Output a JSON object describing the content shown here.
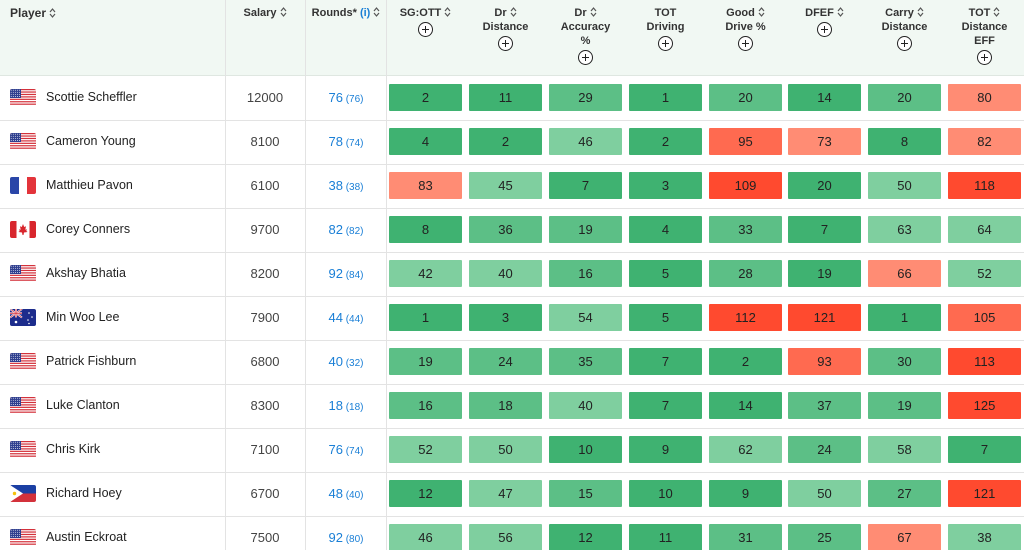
{
  "header": {
    "player": "Player",
    "salary": "Salary",
    "rounds": "Rounds*",
    "rounds_info": "(i)",
    "stats": [
      {
        "lines": [
          "SG:OTT"
        ],
        "sort": true
      },
      {
        "lines": [
          "Dr",
          "Distance"
        ],
        "sort": true
      },
      {
        "lines": [
          "Dr",
          "Accuracy",
          "%"
        ],
        "sort": true
      },
      {
        "lines": [
          "TOT",
          "Driving"
        ],
        "sort": false
      },
      {
        "lines": [
          "Good",
          "Drive %"
        ],
        "sort": true
      },
      {
        "lines": [
          "DFEF"
        ],
        "sort": true
      },
      {
        "lines": [
          "Carry",
          "Distance"
        ],
        "sort": true
      },
      {
        "lines": [
          "TOT",
          "Distance",
          "EFF"
        ],
        "sort": true
      }
    ]
  },
  "colors": {
    "green_dark": "#3fb271",
    "green_mid": "#5cbf86",
    "green_light": "#7fcf9f",
    "red_light": "#ff8c74",
    "red_mid": "#ff6a50",
    "red_dark": "#ff4a2f",
    "link_blue": "#1a7fd6"
  },
  "rows": [
    {
      "name": "Scottie Scheffler",
      "flag": "us-flag-icon",
      "salary": "12000",
      "rounds": "76",
      "rounds_sub": "(76)",
      "stats": [
        "2",
        "11",
        "29",
        "1",
        "20",
        "14",
        "20",
        "80"
      ],
      "shades": [
        "g3",
        "g3",
        "g2",
        "g3",
        "g2",
        "g3",
        "g2",
        "r1"
      ]
    },
    {
      "name": "Cameron Young",
      "flag": "us-flag-icon",
      "salary": "8100",
      "rounds": "78",
      "rounds_sub": "(74)",
      "stats": [
        "4",
        "2",
        "46",
        "2",
        "95",
        "73",
        "8",
        "82"
      ],
      "shades": [
        "g3",
        "g3",
        "g1",
        "g3",
        "r2",
        "r1",
        "g3",
        "r1"
      ]
    },
    {
      "name": "Matthieu Pavon",
      "flag": "fr-flag-icon",
      "salary": "6100",
      "rounds": "38",
      "rounds_sub": "(38)",
      "stats": [
        "83",
        "45",
        "7",
        "3",
        "109",
        "20",
        "50",
        "118"
      ],
      "shades": [
        "r1",
        "g1",
        "g3",
        "g3",
        "r3",
        "g3",
        "g1",
        "r3"
      ]
    },
    {
      "name": "Corey Conners",
      "flag": "ca-flag-icon",
      "salary": "9700",
      "rounds": "82",
      "rounds_sub": "(82)",
      "stats": [
        "8",
        "36",
        "19",
        "4",
        "33",
        "7",
        "63",
        "64"
      ],
      "shades": [
        "g3",
        "g2",
        "g2",
        "g3",
        "g2",
        "g3",
        "g1",
        "g1"
      ]
    },
    {
      "name": "Akshay Bhatia",
      "flag": "us-flag-icon",
      "salary": "8200",
      "rounds": "92",
      "rounds_sub": "(84)",
      "stats": [
        "42",
        "40",
        "16",
        "5",
        "28",
        "19",
        "66",
        "52"
      ],
      "shades": [
        "g1",
        "g1",
        "g2",
        "g3",
        "g2",
        "g3",
        "r1",
        "g1"
      ]
    },
    {
      "name": "Min Woo Lee",
      "flag": "au-flag-icon",
      "salary": "7900",
      "rounds": "44",
      "rounds_sub": "(44)",
      "stats": [
        "1",
        "3",
        "54",
        "5",
        "112",
        "121",
        "1",
        "105"
      ],
      "shades": [
        "g3",
        "g3",
        "g1",
        "g3",
        "r3",
        "r3",
        "g3",
        "r2"
      ]
    },
    {
      "name": "Patrick Fishburn",
      "flag": "us-flag-icon",
      "salary": "6800",
      "rounds": "40",
      "rounds_sub": "(32)",
      "stats": [
        "19",
        "24",
        "35",
        "7",
        "2",
        "93",
        "30",
        "113"
      ],
      "shades": [
        "g2",
        "g2",
        "g2",
        "g3",
        "g3",
        "r2",
        "g2",
        "r3"
      ]
    },
    {
      "name": "Luke Clanton",
      "flag": "us-flag-icon",
      "salary": "8300",
      "rounds": "18",
      "rounds_sub": "(18)",
      "stats": [
        "16",
        "18",
        "40",
        "7",
        "14",
        "37",
        "19",
        "125"
      ],
      "shades": [
        "g2",
        "g2",
        "g1",
        "g3",
        "g3",
        "g2",
        "g2",
        "r3"
      ]
    },
    {
      "name": "Chris Kirk",
      "flag": "us-flag-icon",
      "salary": "7100",
      "rounds": "76",
      "rounds_sub": "(74)",
      "stats": [
        "52",
        "50",
        "10",
        "9",
        "62",
        "24",
        "58",
        "7"
      ],
      "shades": [
        "g1",
        "g1",
        "g3",
        "g3",
        "g1",
        "g2",
        "g1",
        "g3"
      ]
    },
    {
      "name": "Richard Hoey",
      "flag": "ph-flag-icon",
      "salary": "6700",
      "rounds": "48",
      "rounds_sub": "(40)",
      "stats": [
        "12",
        "47",
        "15",
        "10",
        "9",
        "50",
        "27",
        "121"
      ],
      "shades": [
        "g3",
        "g1",
        "g2",
        "g3",
        "g3",
        "g1",
        "g2",
        "r3"
      ]
    },
    {
      "name": "Austin Eckroat",
      "flag": "us-flag-icon",
      "salary": "7500",
      "rounds": "92",
      "rounds_sub": "(80)",
      "stats": [
        "46",
        "56",
        "12",
        "11",
        "31",
        "25",
        "67",
        "38"
      ],
      "shades": [
        "g1",
        "g1",
        "g3",
        "g3",
        "g2",
        "g2",
        "r1",
        "g1"
      ]
    }
  ]
}
